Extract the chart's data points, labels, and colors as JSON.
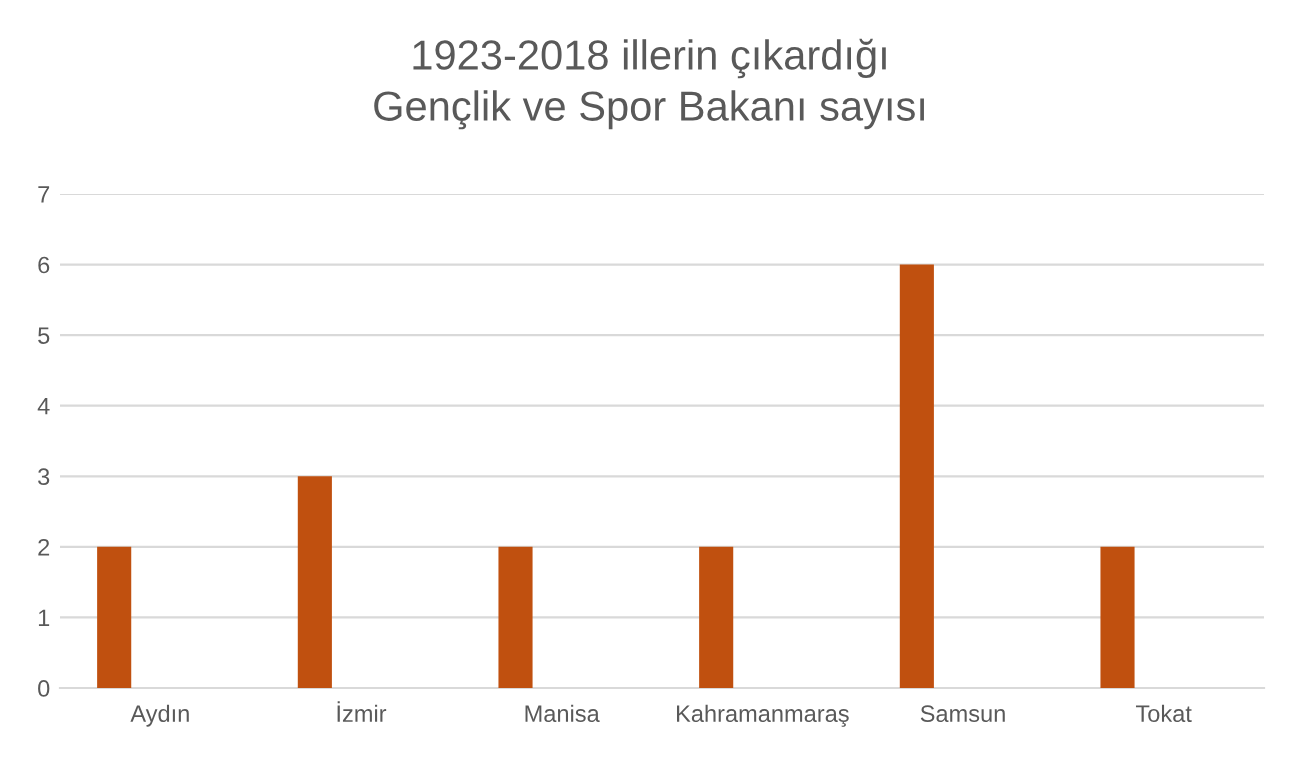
{
  "chart_data": {
    "type": "bar",
    "title": "1923-2018 illerin çıkardığı\nGençlik ve Spor Bakanı sayısı",
    "categories": [
      "Aydın",
      "İzmir",
      "Manisa",
      "Kahramanmaraş",
      "Samsun",
      "Tokat"
    ],
    "values": [
      2,
      3,
      2,
      2,
      6,
      2
    ],
    "color": "#c0500f",
    "ylim": [
      0,
      7
    ],
    "yticks": [
      0,
      1,
      2,
      3,
      4,
      5,
      6,
      7
    ],
    "grid": "y"
  }
}
